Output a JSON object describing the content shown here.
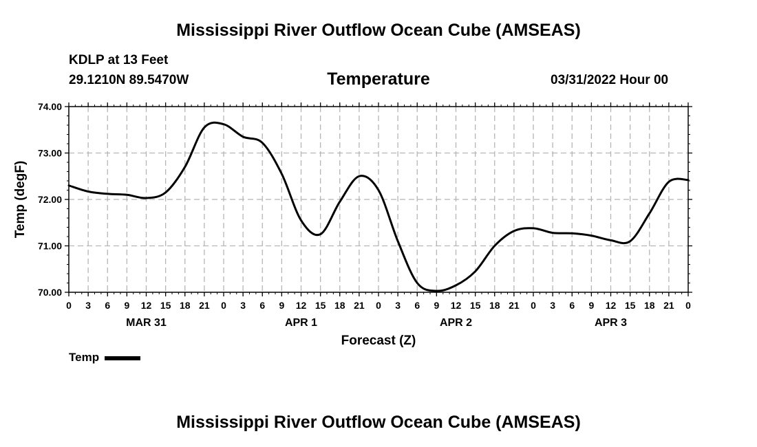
{
  "header": {
    "title": "Mississippi River Outflow Ocean Cube (AMSEAS)",
    "station": "KDLP at 13 Feet",
    "coords": "29.1210N  89.5470W",
    "variable": "Temperature",
    "datetime": "03/31/2022 Hour 00"
  },
  "footer": {
    "title": "Mississippi River Outflow Ocean Cube (AMSEAS)"
  },
  "legend": {
    "label": "Temp"
  },
  "chart_data": {
    "type": "line",
    "title": "Temperature",
    "xlabel": "Forecast (Z)",
    "ylabel": "Temp (degF)",
    "xlim": [
      0,
      96
    ],
    "ylim": [
      70.0,
      74.0
    ],
    "grid": true,
    "y_ticks": [
      "70.00",
      "71.00",
      "72.00",
      "73.00",
      "74.00"
    ],
    "x_ticks": [
      "0",
      "3",
      "6",
      "9",
      "12",
      "15",
      "18",
      "21",
      "0",
      "3",
      "6",
      "9",
      "12",
      "15",
      "18",
      "21",
      "0",
      "3",
      "6",
      "9",
      "12",
      "15",
      "18",
      "21",
      "0",
      "3",
      "6",
      "9",
      "12",
      "15",
      "18",
      "21",
      "0"
    ],
    "day_labels": [
      {
        "label": "MAR 31",
        "hour": 12
      },
      {
        "label": "APR 1",
        "hour": 36
      },
      {
        "label": "APR 2",
        "hour": 60
      },
      {
        "label": "APR 3",
        "hour": 84
      }
    ],
    "series": [
      {
        "name": "Temp",
        "x": [
          0,
          3,
          6,
          9,
          12,
          15,
          18,
          21,
          24,
          27,
          30,
          33,
          36,
          39,
          42,
          45,
          48,
          51,
          54,
          57,
          60,
          63,
          66,
          69,
          72,
          75,
          78,
          81,
          84,
          87,
          90,
          93,
          96
        ],
        "values": [
          72.3,
          72.17,
          72.12,
          72.1,
          72.03,
          72.15,
          72.7,
          73.55,
          73.62,
          73.35,
          73.22,
          72.55,
          71.55,
          71.25,
          71.95,
          72.5,
          72.2,
          71.1,
          70.2,
          70.03,
          70.15,
          70.45,
          71.0,
          71.32,
          71.38,
          71.28,
          71.27,
          71.22,
          71.12,
          71.1,
          71.7,
          72.38,
          72.42
        ]
      }
    ]
  }
}
